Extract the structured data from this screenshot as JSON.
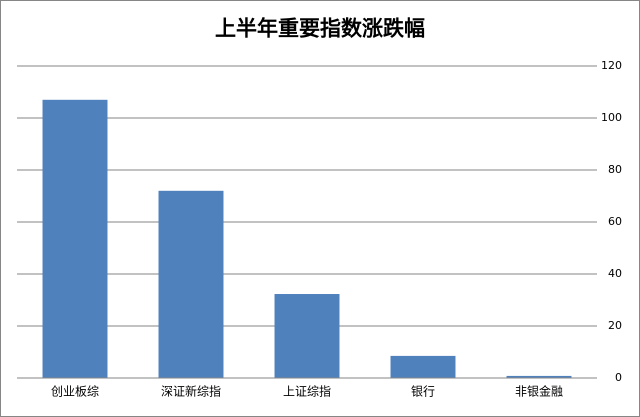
{
  "chart_data": {
    "type": "bar",
    "title": "上半年重要指数涨跌幅",
    "categories": [
      "创业板综",
      "深证新综指",
      "上证综指",
      "银行",
      "非银金融"
    ],
    "values": [
      107,
      72,
      32.3,
      8.5,
      0.8
    ],
    "color": "#4f81bd",
    "ylim": [
      0,
      120
    ],
    "yticks": [
      0,
      20,
      40,
      60,
      80,
      100,
      120
    ],
    "grid": true,
    "y_axis_side": "right"
  }
}
